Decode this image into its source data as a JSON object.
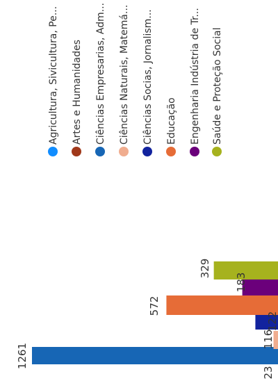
{
  "chart_data": {
    "type": "bar",
    "orientation": "rotated-90-clockwise",
    "value_axis_max": 1261,
    "bars_visible_cropped": true,
    "series": [
      {
        "name": "Agricultura, Sivicultura, Pe...",
        "color": "#118DFF",
        "value": null
      },
      {
        "name": "Artes e Humanidades",
        "color": "#A0381A",
        "value": null
      },
      {
        "name": "Ciências Empresarias, Adm...",
        "color": "#1766B5",
        "value": 1261
      },
      {
        "name": "Ciências Naturais, Matemá...",
        "color": "#F0AD8F",
        "value": 23
      },
      {
        "name": "Ciências Socias, Jornalism...",
        "color": "#12239E",
        "value": 116
      },
      {
        "name": "Educação",
        "color": "#E66C37",
        "value": 572
      },
      {
        "name": "Engenharia Indústria de Tr...",
        "color": "#6B007B",
        "value": 183
      },
      {
        "name": "Saúde e Proteção Social",
        "color": "#A6B21E",
        "value": 329
      }
    ],
    "extra_labels": [
      "122"
    ]
  }
}
